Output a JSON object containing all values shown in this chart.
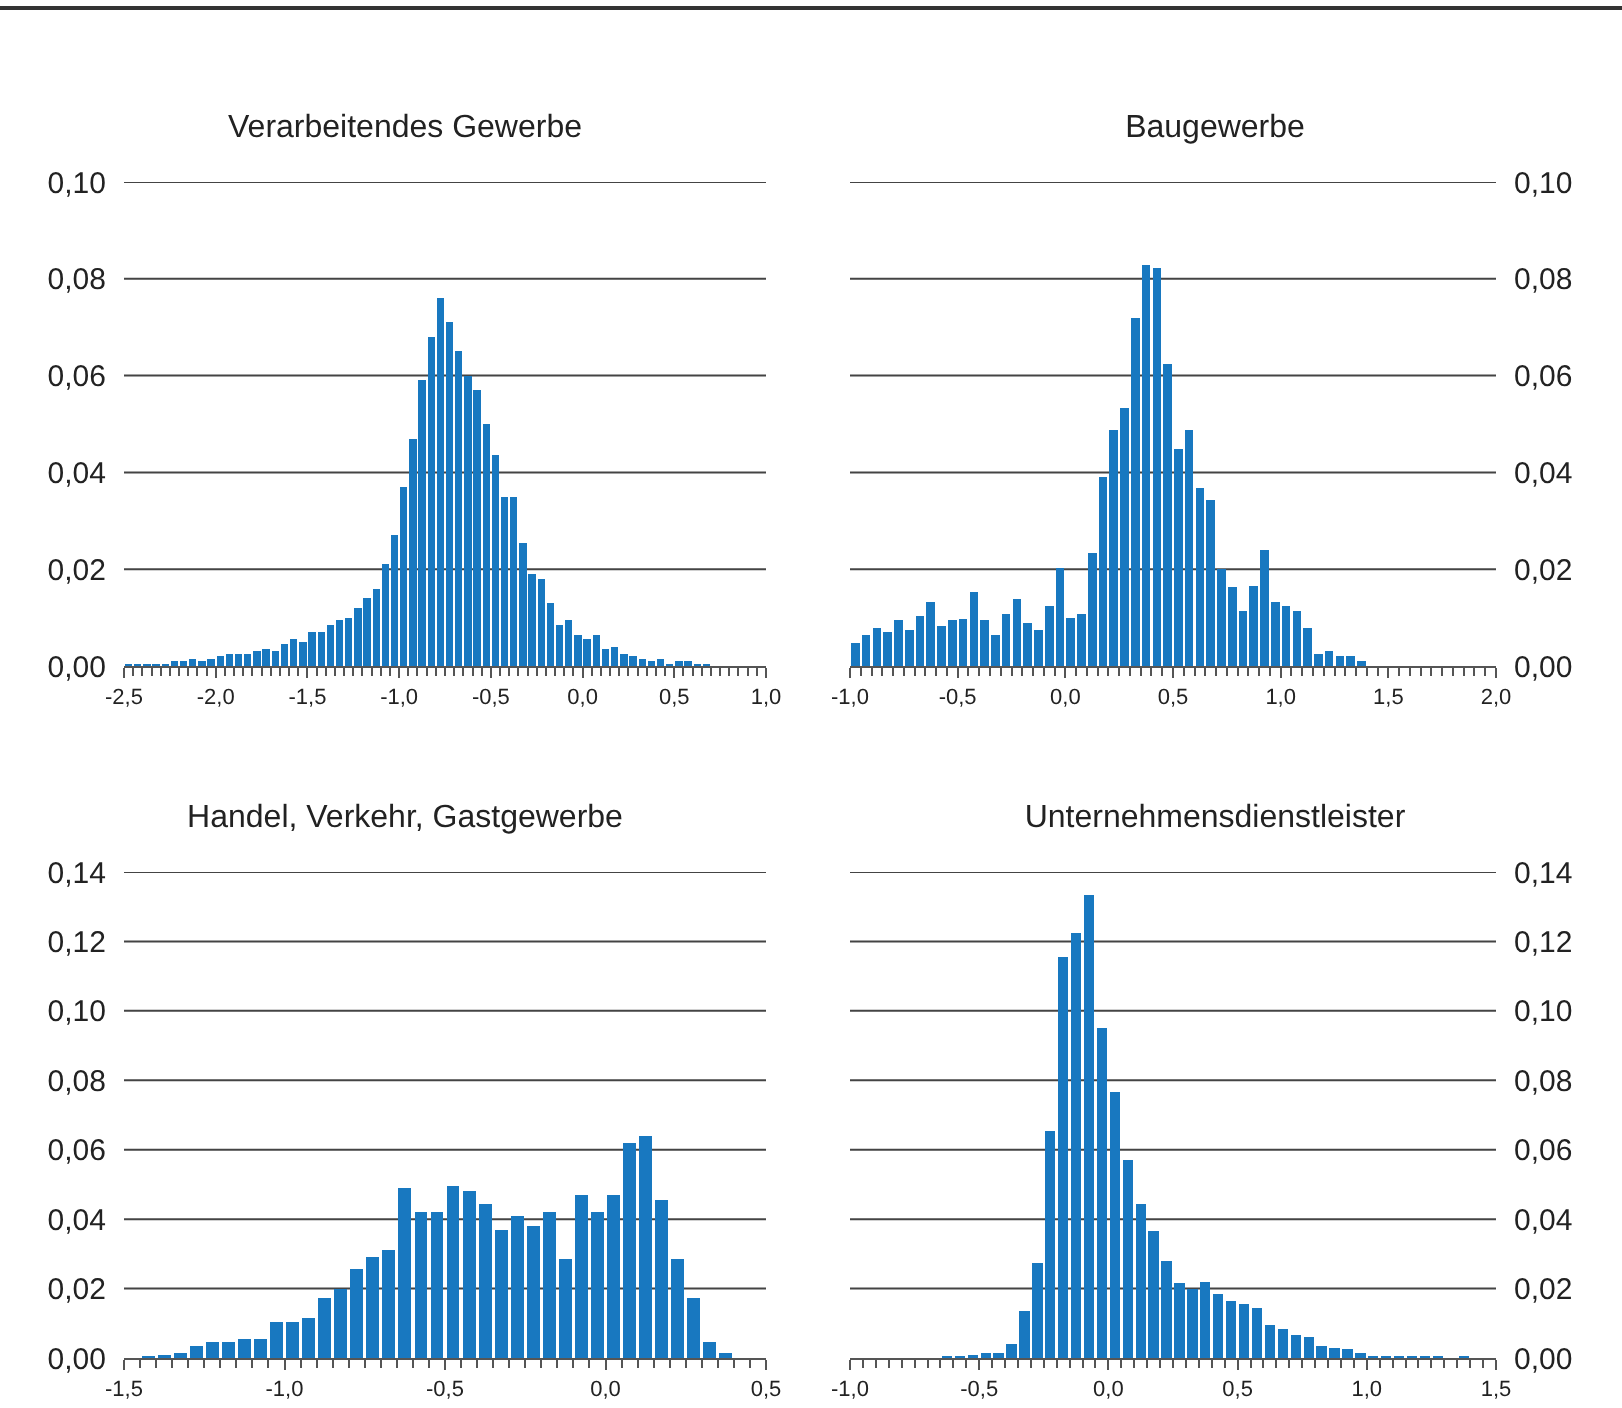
{
  "chart_data": [
    {
      "type": "histogram",
      "title": "Verarbeitendes Gewerbe",
      "color": "#1878c0",
      "grid": "y",
      "bins": [
        -2.5,
        -2.45,
        -2.4,
        -2.35,
        -2.3,
        -2.25,
        -2.2,
        -2.15,
        -2.1,
        -2.05,
        -2.0,
        -1.95,
        -1.9,
        -1.85,
        -1.8,
        -1.75,
        -1.7,
        -1.65,
        -1.6,
        -1.55,
        -1.5,
        -1.45,
        -1.4,
        -1.35,
        -1.3,
        -1.25,
        -1.2,
        -1.15,
        -1.1,
        -1.05,
        -1.0,
        -0.95,
        -0.9,
        -0.85,
        -0.8,
        -0.75,
        -0.7,
        -0.65,
        -0.6,
        -0.55,
        -0.5,
        -0.45,
        -0.4,
        -0.35,
        -0.3,
        -0.25,
        -0.2,
        -0.15,
        -0.1,
        -0.05,
        0.0,
        0.05,
        0.1,
        0.15,
        0.2,
        0.25,
        0.3,
        0.35,
        0.4,
        0.45,
        0.5,
        0.55,
        0.6,
        0.65,
        0.7,
        0.75,
        0.8,
        0.85,
        0.9,
        0.95,
        1.0
      ],
      "values": [
        0.0005,
        0.0005,
        0.0005,
        0.0005,
        0.0005,
        0.001,
        0.001,
        0.0015,
        0.001,
        0.0015,
        0.002,
        0.0025,
        0.0025,
        0.0025,
        0.003,
        0.0035,
        0.003,
        0.0045,
        0.0055,
        0.005,
        0.007,
        0.007,
        0.0085,
        0.0095,
        0.01,
        0.012,
        0.014,
        0.016,
        0.021,
        0.027,
        0.037,
        0.047,
        0.059,
        0.068,
        0.076,
        0.071,
        0.065,
        0.06,
        0.057,
        0.05,
        0.0435,
        0.035,
        0.035,
        0.0255,
        0.019,
        0.018,
        0.013,
        0.0085,
        0.0095,
        0.0065,
        0.0055,
        0.0065,
        0.0035,
        0.004,
        0.0025,
        0.002,
        0.0015,
        0.001,
        0.0015,
        0.0005,
        0.001,
        0.001,
        0.0005,
        0.0005,
        0,
        0,
        0,
        0,
        0,
        0
      ],
      "xlim": [
        -2.5,
        1.0
      ],
      "xticks": [
        {
          "value": -2.5,
          "label": "-2,5"
        },
        {
          "value": -2.0,
          "label": "-2,0"
        },
        {
          "value": -1.5,
          "label": "-1,5"
        },
        {
          "value": -1.0,
          "label": "-1,0"
        },
        {
          "value": -0.5,
          "label": "-0,5"
        },
        {
          "value": 0,
          "label": "0,0"
        },
        {
          "value": 0.5,
          "label": "0,5"
        },
        {
          "value": 1.0,
          "label": "1,0"
        }
      ],
      "ylim": [
        0,
        0.1
      ],
      "yticks": [
        {
          "value": 0,
          "label": "0,00"
        },
        {
          "value": 0.02,
          "label": "0,02"
        },
        {
          "value": 0.04,
          "label": "0,04"
        },
        {
          "value": 0.06,
          "label": "0,06"
        },
        {
          "value": 0.08,
          "label": "0,08"
        },
        {
          "value": 0.1,
          "label": "0,10"
        }
      ]
    },
    {
      "type": "histogram",
      "title": "Baugewerbe",
      "color": "#1878c0",
      "grid": "y",
      "bins": [
        -1.0,
        -0.95,
        -0.9,
        -0.85,
        -0.8,
        -0.75,
        -0.7,
        -0.65,
        -0.6,
        -0.55,
        -0.5,
        -0.45,
        -0.4,
        -0.35,
        -0.3,
        -0.25,
        -0.2,
        -0.15,
        -0.1,
        -0.05,
        0.0,
        0.05,
        0.1,
        0.15,
        0.2,
        0.25,
        0.3,
        0.35,
        0.4,
        0.45,
        0.5,
        0.55,
        0.6,
        0.65,
        0.7,
        0.75,
        0.8,
        0.85,
        0.9,
        0.95,
        1.0,
        1.05,
        1.1,
        1.15,
        1.2,
        1.25,
        1.3,
        1.35,
        1.4,
        1.45,
        1.5,
        1.55,
        1.6,
        1.65,
        1.7,
        1.75,
        1.8,
        1.85,
        1.9,
        1.95,
        2.0
      ],
      "values": [
        0.0048,
        0.0065,
        0.0078,
        0.007,
        0.0095,
        0.0075,
        0.0103,
        0.0133,
        0.0083,
        0.0095,
        0.0098,
        0.0153,
        0.0095,
        0.0065,
        0.0108,
        0.0138,
        0.0088,
        0.0075,
        0.0125,
        0.0203,
        0.01,
        0.0108,
        0.0233,
        0.039,
        0.0488,
        0.0533,
        0.0718,
        0.0828,
        0.0823,
        0.0623,
        0.0448,
        0.0488,
        0.0368,
        0.0343,
        0.02,
        0.0163,
        0.0113,
        0.0165,
        0.024,
        0.0133,
        0.0123,
        0.0113,
        0.0078,
        0.0025,
        0.003,
        0.002,
        0.002,
        0.001,
        0,
        0,
        0,
        0,
        0,
        0,
        0,
        0,
        0,
        0,
        0,
        0
      ],
      "xlim": [
        -1.0,
        2.0
      ],
      "xticks": [
        {
          "value": -1.0,
          "label": "-1,0"
        },
        {
          "value": -0.5,
          "label": "-0,5"
        },
        {
          "value": 0,
          "label": "0,0"
        },
        {
          "value": 0.5,
          "label": "0,5"
        },
        {
          "value": 1.0,
          "label": "1,0"
        },
        {
          "value": 1.5,
          "label": "1,5"
        },
        {
          "value": 2.0,
          "label": "2,0"
        }
      ],
      "ylim": [
        0,
        0.1
      ],
      "yticks": [
        {
          "value": 0,
          "label": "0,00"
        },
        {
          "value": 0.02,
          "label": "0,02"
        },
        {
          "value": 0.04,
          "label": "0,04"
        },
        {
          "value": 0.06,
          "label": "0,06"
        },
        {
          "value": 0.08,
          "label": "0,08"
        },
        {
          "value": 0.1,
          "label": "0,10"
        }
      ]
    },
    {
      "type": "histogram",
      "title": "Handel, Verkehr, Gastgewerbe",
      "color": "#1878c0",
      "grid": "y",
      "bins": [
        -1.5,
        -1.45,
        -1.4,
        -1.35,
        -1.3,
        -1.25,
        -1.2,
        -1.15,
        -1.1,
        -1.05,
        -1.0,
        -0.95,
        -0.9,
        -0.85,
        -0.8,
        -0.75,
        -0.7,
        -0.65,
        -0.6,
        -0.55,
        -0.5,
        -0.45,
        -0.4,
        -0.35,
        -0.3,
        -0.25,
        -0.2,
        -0.15,
        -0.1,
        -0.05,
        0.0,
        0.05,
        0.1,
        0.15,
        0.2,
        0.25,
        0.3,
        0.35,
        0.4,
        0.45,
        0.5
      ],
      "values": [
        0,
        0.0005,
        0.001,
        0.0015,
        0.0035,
        0.0045,
        0.0045,
        0.0055,
        0.0055,
        0.0105,
        0.0105,
        0.0115,
        0.0173,
        0.02,
        0.0255,
        0.029,
        0.031,
        0.049,
        0.042,
        0.042,
        0.0495,
        0.048,
        0.0445,
        0.037,
        0.041,
        0.038,
        0.042,
        0.0285,
        0.047,
        0.042,
        0.047,
        0.062,
        0.064,
        0.0455,
        0.0285,
        0.0173,
        0.0045,
        0.0015,
        0,
        0
      ],
      "xlim": [
        -1.5,
        0.5
      ],
      "xticks": [
        {
          "value": -1.5,
          "label": "-1,5"
        },
        {
          "value": -1.0,
          "label": "-1,0"
        },
        {
          "value": -0.5,
          "label": "-0,5"
        },
        {
          "value": 0,
          "label": "0,0"
        },
        {
          "value": 0.5,
          "label": "0,5"
        }
      ],
      "ylim": [
        0,
        0.14
      ],
      "yticks": [
        {
          "value": 0,
          "label": "0,00"
        },
        {
          "value": 0.02,
          "label": "0,02"
        },
        {
          "value": 0.04,
          "label": "0,04"
        },
        {
          "value": 0.06,
          "label": "0,06"
        },
        {
          "value": 0.08,
          "label": "0,08"
        },
        {
          "value": 0.1,
          "label": "0,10"
        },
        {
          "value": 0.12,
          "label": "0,12"
        },
        {
          "value": 0.14,
          "label": "0,14"
        }
      ]
    },
    {
      "type": "histogram",
      "title": "Unternehmensdienstleister",
      "color": "#1878c0",
      "grid": "y",
      "bins": [
        -1.0,
        -0.95,
        -0.9,
        -0.85,
        -0.8,
        -0.75,
        -0.7,
        -0.65,
        -0.6,
        -0.55,
        -0.5,
        -0.45,
        -0.4,
        -0.35,
        -0.3,
        -0.25,
        -0.2,
        -0.15,
        -0.1,
        -0.05,
        0.0,
        0.05,
        0.1,
        0.15,
        0.2,
        0.25,
        0.3,
        0.35,
        0.4,
        0.45,
        0.5,
        0.55,
        0.6,
        0.65,
        0.7,
        0.75,
        0.8,
        0.85,
        0.9,
        0.95,
        1.0,
        1.05,
        1.1,
        1.15,
        1.2,
        1.25,
        1.3,
        1.35,
        1.4,
        1.45,
        1.5
      ],
      "values": [
        0,
        0,
        0,
        0,
        0,
        0,
        0,
        0.0005,
        0.0005,
        0.001,
        0.0015,
        0.0015,
        0.004,
        0.0135,
        0.0275,
        0.0655,
        0.1155,
        0.1225,
        0.1335,
        0.095,
        0.0765,
        0.057,
        0.0445,
        0.0365,
        0.028,
        0.0215,
        0.02,
        0.022,
        0.0185,
        0.0165,
        0.0155,
        0.0145,
        0.0095,
        0.0085,
        0.0065,
        0.006,
        0.0035,
        0.003,
        0.0025,
        0.0015,
        0.0005,
        0.0005,
        0.0005,
        0.0005,
        0.0005,
        0.0005,
        0,
        0.0005,
        0,
        0
      ],
      "xlim": [
        -1.0,
        1.5
      ],
      "xticks": [
        {
          "value": -1.0,
          "label": "-1,0"
        },
        {
          "value": -0.5,
          "label": "-0,5"
        },
        {
          "value": 0,
          "label": "0,0"
        },
        {
          "value": 0.5,
          "label": "0,5"
        },
        {
          "value": 1.0,
          "label": "1,0"
        },
        {
          "value": 1.5,
          "label": "1,5"
        }
      ],
      "ylim": [
        0,
        0.14
      ],
      "yticks": [
        {
          "value": 0,
          "label": "0,00"
        },
        {
          "value": 0.02,
          "label": "0,02"
        },
        {
          "value": 0.04,
          "label": "0,04"
        },
        {
          "value": 0.06,
          "label": "0,06"
        },
        {
          "value": 0.08,
          "label": "0,08"
        },
        {
          "value": 0.1,
          "label": "0,10"
        },
        {
          "value": 0.12,
          "label": "0,12"
        },
        {
          "value": 0.14,
          "label": "0,14"
        }
      ]
    }
  ]
}
